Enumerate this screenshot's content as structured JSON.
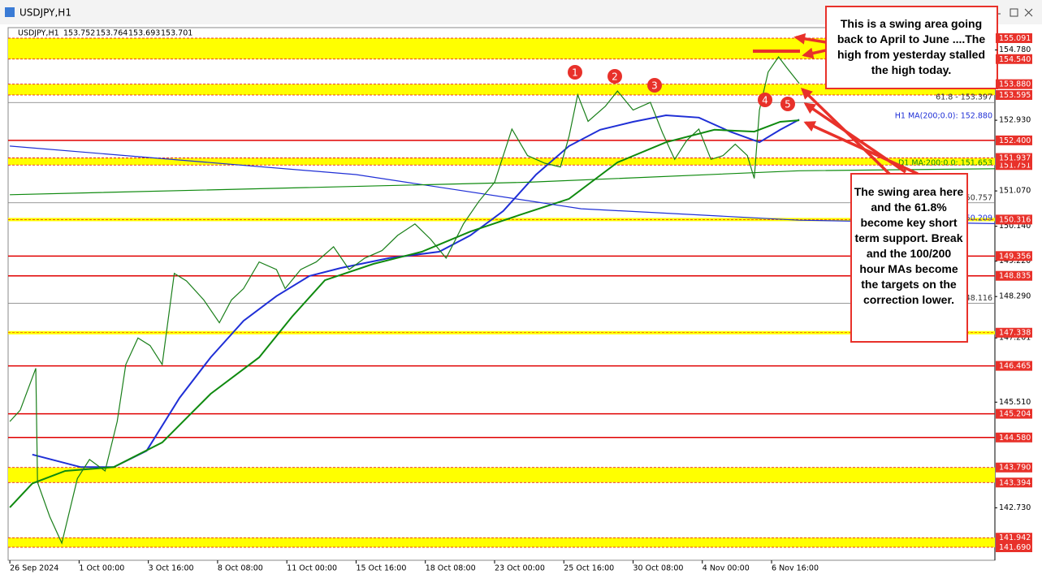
{
  "window_title": "USDJPY,H1",
  "chart_data": {
    "type": "line",
    "symbol": "USDJPY,H1",
    "ohlc": [
      153.752,
      153.764,
      153.693,
      153.701
    ],
    "xlim": [
      -1,
      569
    ],
    "ylim": [
      141.455,
      155.283
    ],
    "xticks": [
      {
        "value": 0,
        "label": "26 Sep 2024"
      },
      {
        "value": 40,
        "label": "1 Oct 00:00"
      },
      {
        "value": 80,
        "label": "3 Oct 16:00"
      },
      {
        "value": 120,
        "label": "8 Oct 08:00"
      },
      {
        "value": 160,
        "label": "11 Oct 00:00"
      },
      {
        "value": 200,
        "label": "15 Oct 16:00"
      },
      {
        "value": 240,
        "label": "18 Oct 08:00"
      },
      {
        "value": 280,
        "label": "23 Oct 00:00"
      },
      {
        "value": 320,
        "label": "25 Oct 16:00"
      },
      {
        "value": 360,
        "label": "30 Oct 08:00"
      },
      {
        "value": 400,
        "label": "4 Nov 00:00"
      },
      {
        "value": 440,
        "label": "6 Nov 16:00"
      }
    ],
    "yticks": [
      {
        "value": 154.78,
        "label": "154.780"
      },
      {
        "value": 152.93,
        "label": "152.930"
      },
      {
        "value": 151.07,
        "label": "151.070"
      },
      {
        "value": 150.14,
        "label": "150.140"
      },
      {
        "value": 149.22,
        "label": "149.220"
      },
      {
        "value": 148.29,
        "label": "148.290"
      },
      147.201,
      {
        "value": 145.51,
        "label": "145.510"
      },
      {
        "value": 142.73,
        "label": "142.730"
      }
    ],
    "zones": [
      {
        "low": {
          "value": 154.54,
          "label": "154.540"
        },
        "high": 155.091
      },
      {
        "low": 153.595,
        "high": {
          "value": 153.88,
          "label": "153.880"
        }
      },
      {
        "low": 151.751,
        "high": 151.937
      },
      {
        "low": 143.394,
        "high": {
          "value": 143.79,
          "label": "143.790"
        }
      },
      {
        "low": {
          "value": 141.69,
          "label": "141.690"
        },
        "high": 141.942
      }
    ],
    "zone_color": "#ffff00",
    "red_lines": [
      {
        "value": 152.4,
        "label": "152.400"
      },
      149.356,
      148.835,
      146.465,
      145.204,
      {
        "value": 144.58,
        "label": "144.580"
      }
    ],
    "red_line_color": "#e00000",
    "marker_levels": [
      150.316,
      147.338
    ],
    "reference_lines": [
      {
        "value": 153.397,
        "label": "61.8 - 153.397"
      },
      150.757,
      148.116
    ],
    "price": {
      "color": "#1a7f1a",
      "x": [
        0,
        6,
        15,
        16,
        23,
        30,
        39,
        46,
        55,
        62,
        67,
        74,
        81,
        88,
        95,
        102,
        112,
        121,
        128,
        135,
        144,
        154,
        159,
        168,
        177,
        187,
        196,
        205,
        215,
        224,
        234,
        243,
        252,
        262,
        271,
        280,
        290,
        299,
        309,
        318,
        323,
        328,
        334,
        344,
        351,
        360,
        370,
        377,
        384,
        391,
        398,
        405,
        412,
        419,
        426,
        430,
        433,
        438,
        444,
        449,
        456
      ],
      "values": [
        145.0,
        145.3,
        146.4,
        143.4,
        142.5,
        141.8,
        143.5,
        144.0,
        143.7,
        145.0,
        146.5,
        147.2,
        147.0,
        146.5,
        148.9,
        148.7,
        148.2,
        147.6,
        148.2,
        148.5,
        149.2,
        149.0,
        148.5,
        149.0,
        149.2,
        149.6,
        149.0,
        149.3,
        149.5,
        149.9,
        150.2,
        149.8,
        149.3,
        150.2,
        150.8,
        151.3,
        152.7,
        152.0,
        151.8,
        151.7,
        152.5,
        153.6,
        152.9,
        153.3,
        153.7,
        153.2,
        153.4,
        152.6,
        151.9,
        152.4,
        152.7,
        151.9,
        152.0,
        152.3,
        152.0,
        151.4,
        153.2,
        154.2,
        154.6,
        154.3,
        153.9
      ]
    },
    "moving_averages": [
      {
        "color": "#1f2fd6",
        "x": [
          13,
          41,
          60,
          79,
          98,
          116,
          135,
          154,
          173,
          191,
          219,
          248,
          266,
          285,
          304,
          323,
          341,
          360,
          379,
          398,
          416,
          433,
          445,
          456
        ],
        "values": [
          144.13,
          143.8,
          143.8,
          144.23,
          145.62,
          146.69,
          147.65,
          148.3,
          148.83,
          149.04,
          149.3,
          149.47,
          149.9,
          150.54,
          151.5,
          152.25,
          152.68,
          152.89,
          153.06,
          153.0,
          152.63,
          152.35,
          152.68,
          152.95
        ]
      },
      {
        "color": "#0f8a0f",
        "x": [
          0,
          13,
          32,
          60,
          88,
          116,
          144,
          163,
          182,
          210,
          238,
          266,
          294,
          323,
          351,
          379,
          407,
          430,
          445,
          456
        ],
        "values": [
          142.74,
          143.37,
          143.7,
          143.8,
          144.45,
          145.73,
          146.69,
          147.76,
          148.72,
          149.15,
          149.47,
          150.0,
          150.43,
          150.86,
          151.82,
          152.35,
          152.68,
          152.63,
          152.89,
          152.93
        ]
      },
      {
        "color": "#1f2fd6",
        "x": [
          0,
          200,
          330,
          456,
          569
        ],
        "values": [
          152.25,
          151.5,
          150.6,
          150.3,
          150.209
        ]
      },
      {
        "color": "#0f8a0f",
        "x": [
          0,
          300,
          456,
          569
        ],
        "values": [
          150.97,
          151.3,
          151.6,
          151.653
        ]
      }
    ],
    "ma_labels": [
      {
        "text": "H1 MA(200;0.0): 152.880",
        "color": "#1f2fd6"
      },
      {
        "text": "D1 MA:200:0.0: 151.653",
        "color": "#0f8a0f"
      },
      {
        "text": "150.209",
        "color": "#1f2fd6"
      }
    ],
    "swing_points": [
      "1",
      "2",
      "3",
      "4",
      "5"
    ],
    "annotations": [
      "This is a swing area going back to April to June ....The high from yesterday stalled the high today.",
      "The swing area here and the 61.8% become key short term support. Break and the 100/200 hour MAs become the targets on the correction lower."
    ]
  }
}
